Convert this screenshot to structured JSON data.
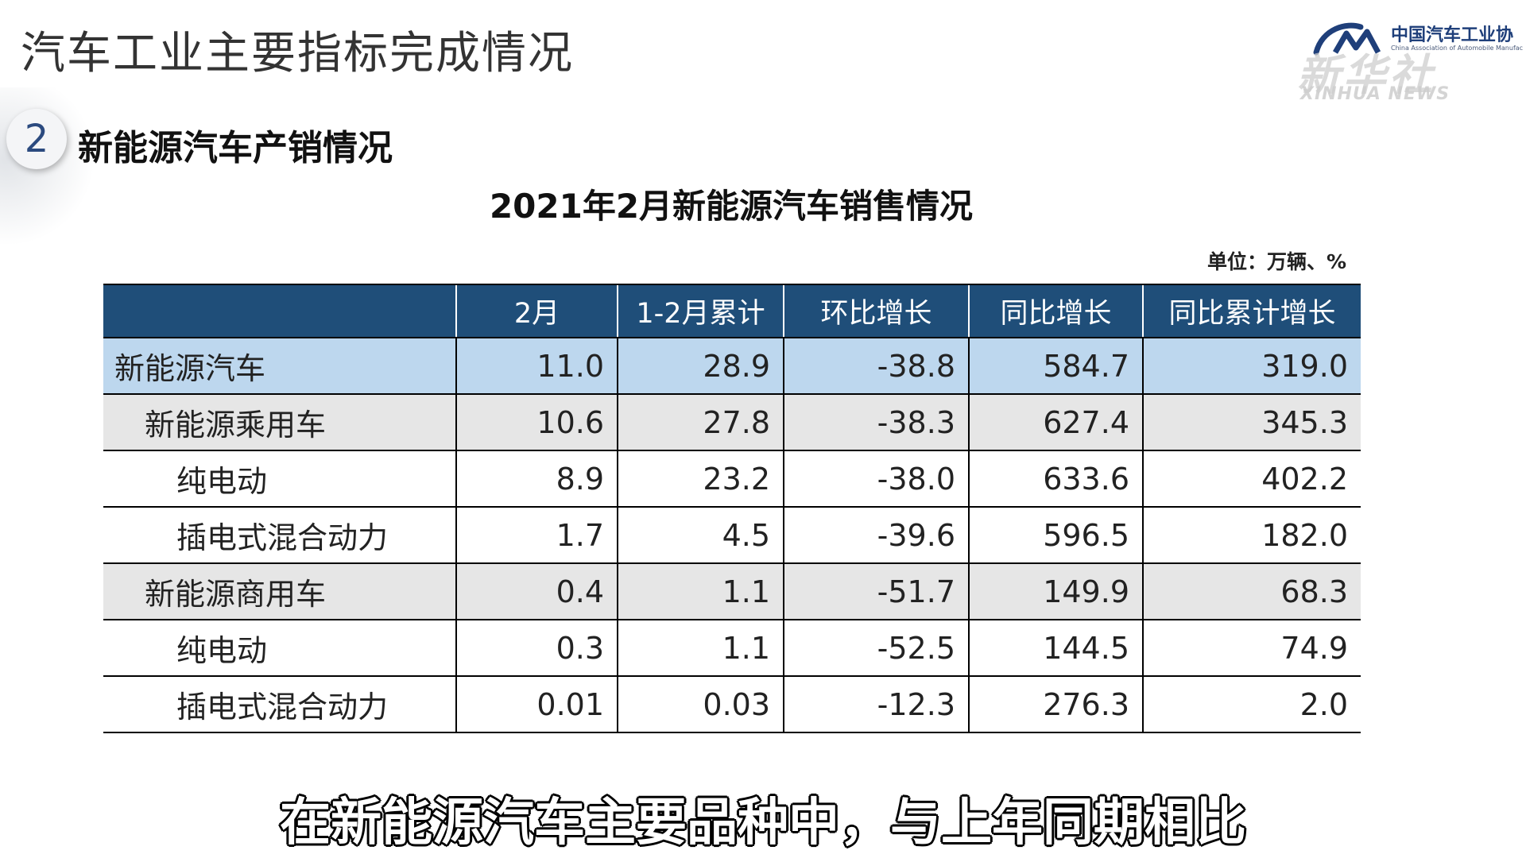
{
  "page_title": "汽车工业主要指标完成情况",
  "logo": {
    "name_cn": "中国汽车工业协",
    "name_en": "China Association of Automobile Manufac",
    "color": "#1f3f7a"
  },
  "watermark": {
    "cn": "新华社",
    "en": "XINHUA NEWS"
  },
  "section": {
    "number": "2",
    "title": "新能源汽车产销情况"
  },
  "table_title": "2021年2月新能源汽车销售情况",
  "unit": "单位：万辆、%",
  "table": {
    "headers": [
      "",
      "2月",
      "1-2月累计",
      "环比增长",
      "同比增长",
      "同比累计增长"
    ],
    "rows": [
      {
        "level": 0,
        "cells": [
          "新能源汽车",
          "11.0",
          "28.9",
          "-38.8",
          "584.7",
          "319.0"
        ]
      },
      {
        "level": 1,
        "cells": [
          "新能源乘用车",
          "10.6",
          "27.8",
          "-38.3",
          "627.4",
          "345.3"
        ]
      },
      {
        "level": 2,
        "cells": [
          "纯电动",
          "8.9",
          "23.2",
          "-38.0",
          "633.6",
          "402.2"
        ]
      },
      {
        "level": 2,
        "cells": [
          "插电式混合动力",
          "1.7",
          "4.5",
          "-39.6",
          "596.5",
          "182.0"
        ]
      },
      {
        "level": 1,
        "cells": [
          "新能源商用车",
          "0.4",
          "1.1",
          "-51.7",
          "149.9",
          "68.3"
        ]
      },
      {
        "level": 2,
        "cells": [
          "纯电动",
          "0.3",
          "1.1",
          "-52.5",
          "144.5",
          "74.9"
        ]
      },
      {
        "level": 2,
        "cells": [
          "插电式混合动力",
          "0.01",
          "0.03",
          "-12.3",
          "276.3",
          "2.0"
        ]
      }
    ]
  },
  "subtitle": "在新能源汽车主要品种中，与上年同期相比",
  "colors": {
    "header_bg": "#1f4e79",
    "total_row_bg": "#bdd7ee",
    "group_row_bg": "#e6e6e6"
  }
}
